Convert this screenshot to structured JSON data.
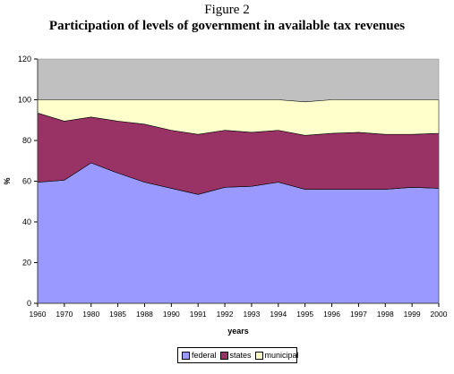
{
  "figure_label": "Figure 2",
  "chart_data": {
    "type": "area",
    "stacked": true,
    "title": "Participation of levels of government  in available tax revenues",
    "xlabel": "years",
    "ylabel": "%",
    "ylim": [
      0,
      120
    ],
    "yticks": [
      0,
      20,
      40,
      60,
      80,
      100,
      120
    ],
    "grid": true,
    "legend_position": "bottom",
    "categories": [
      "1960",
      "1970",
      "1980",
      "1985",
      "1988",
      "1990",
      "1991",
      "1992",
      "1993",
      "1994",
      "1995",
      "1996",
      "1997",
      "1998",
      "1999",
      "2000"
    ],
    "series": [
      {
        "name": "federal",
        "color": "#9999ff",
        "values": [
          59.5,
          60.5,
          69,
          64,
          59.5,
          56.5,
          53.5,
          57,
          57.5,
          59.5,
          56,
          56,
          56,
          56,
          57,
          56.5
        ]
      },
      {
        "name": "states",
        "color": "#993366",
        "values": [
          34,
          29,
          22.5,
          25.5,
          28.5,
          28.5,
          29.5,
          28,
          26.5,
          25.5,
          26.5,
          27.5,
          28,
          27,
          26,
          27
        ]
      },
      {
        "name": "municipal",
        "color": "#ffffcc",
        "values": [
          6.5,
          10.5,
          8.5,
          10.5,
          12,
          15,
          17,
          15,
          16,
          15,
          16.5,
          16.5,
          16,
          17,
          17,
          16.5
        ]
      }
    ],
    "background_color": "#c0c0c0"
  }
}
